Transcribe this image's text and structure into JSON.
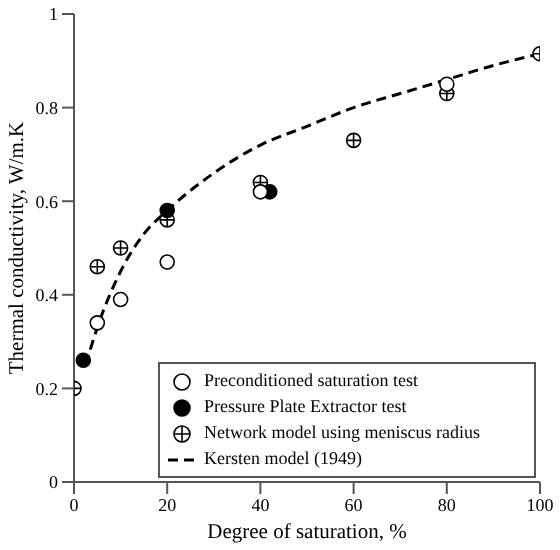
{
  "chart_data": {
    "type": "scatter",
    "xlabel": "Degree of saturation, %",
    "ylabel": "Thermal conductivity, W/m.K",
    "xlim": [
      0,
      100
    ],
    "xticks": [
      0,
      20,
      40,
      60,
      80,
      100
    ],
    "ylim": [
      0,
      1
    ],
    "yticks": [
      0,
      0.2,
      0.4,
      0.6,
      0.8,
      1
    ],
    "grid": false,
    "legend": "bottom right",
    "series": [
      {
        "name": "Preconditioned saturation test",
        "marker": "circle",
        "color": "#ffffff",
        "x": [
          5,
          10,
          20,
          40,
          80
        ],
        "values": [
          0.34,
          0.39,
          0.47,
          0.62,
          0.85
        ]
      },
      {
        "name": "Pressure Plate Extractor test",
        "marker": "circle",
        "color": "#000000",
        "x": [
          2,
          20,
          42
        ],
        "values": [
          0.26,
          0.58,
          0.62
        ]
      },
      {
        "name": "Network model using meniscus radius",
        "color": "#ffffff",
        "x": [
          0,
          5,
          10,
          20,
          40,
          60,
          80,
          100
        ],
        "values": [
          0.2,
          0.46,
          0.5,
          0.56,
          0.64,
          0.73,
          0.83,
          0.915
        ]
      },
      {
        "name": "Kersten model (1949)",
        "type": "line",
        "line_style": "dashed",
        "marker": "none",
        "color": "#000000",
        "x": [
          2.5,
          5,
          10,
          15,
          20,
          30,
          40,
          50,
          60,
          70,
          80,
          90,
          100
        ],
        "values": [
          0.25,
          0.33,
          0.45,
          0.53,
          0.58,
          0.66,
          0.72,
          0.76,
          0.8,
          0.83,
          0.86,
          0.89,
          0.915
        ]
      }
    ]
  }
}
